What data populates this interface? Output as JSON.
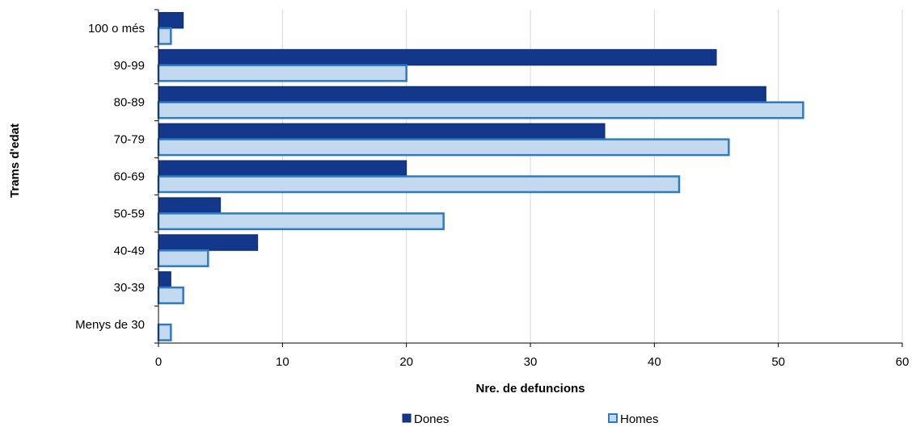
{
  "chart_data": {
    "type": "bar",
    "orientation": "horizontal",
    "categories": [
      "Menys de 30",
      "30-39",
      "40-49",
      "50-59",
      "60-69",
      "70-79",
      "80-89",
      "90-99",
      "100 o més"
    ],
    "series": [
      {
        "name": "Dones",
        "values": [
          0,
          1,
          8,
          5,
          20,
          36,
          49,
          45,
          2
        ],
        "color": "#13388b",
        "border": "#0d2a6b"
      },
      {
        "name": "Homes",
        "values": [
          1,
          2,
          4,
          23,
          42,
          46,
          52,
          20,
          1
        ],
        "color": "#c3d9f0",
        "border": "#2e7bc4"
      }
    ],
    "xlabel": "Nre. de defuncions",
    "ylabel": "Trams d'edat",
    "xlim": [
      0,
      60
    ],
    "xticks": [
      0,
      10,
      20,
      30,
      40,
      50,
      60
    ],
    "grid": true,
    "legend_position": "bottom"
  }
}
